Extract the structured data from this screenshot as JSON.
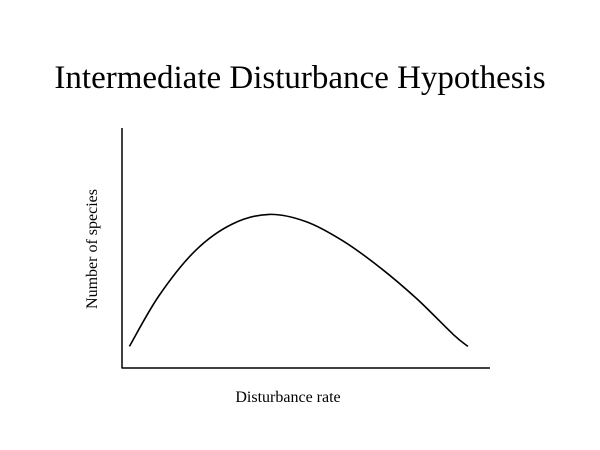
{
  "chart_data": {
    "type": "line",
    "title": "Intermediate Disturbance Hypothesis",
    "xlabel": "Disturbance rate",
    "ylabel": "Number of species",
    "grid": false,
    "ticks": false,
    "xlim": [
      0,
      1
    ],
    "ylim": [
      0,
      1
    ],
    "series": [
      {
        "x": [
          0.02,
          0.1,
          0.2,
          0.3,
          0.4,
          0.5,
          0.6,
          0.7,
          0.8,
          0.9,
          0.94
        ],
        "y": [
          0.09,
          0.3,
          0.49,
          0.6,
          0.64,
          0.61,
          0.53,
          0.42,
          0.29,
          0.14,
          0.09
        ]
      }
    ]
  },
  "colors": {
    "line": "#000000",
    "background": "#ffffff"
  }
}
